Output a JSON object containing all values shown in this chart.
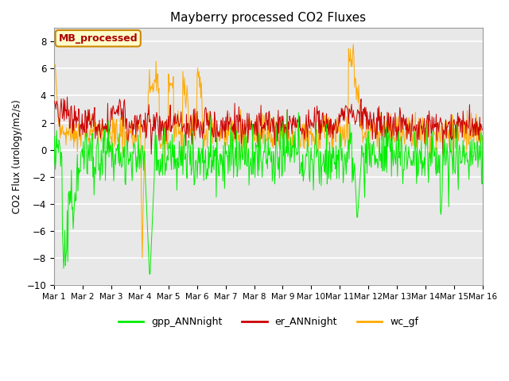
{
  "title": "Mayberry processed CO2 Fluxes",
  "ylabel": "CO2 Flux (urology/m2/s)",
  "ylim": [
    -10,
    9
  ],
  "yticks": [
    -10,
    -8,
    -6,
    -4,
    -2,
    0,
    2,
    4,
    6,
    8
  ],
  "xlim": [
    0,
    15
  ],
  "xtick_labels": [
    "Mar 1",
    "Mar 2",
    "Mar 3",
    "Mar 4",
    "Mar 5",
    "Mar 6",
    "Mar 7",
    "Mar 8",
    "Mar 9",
    "Mar 10",
    "Mar 11",
    "Mar 12",
    "Mar 13",
    "Mar 14",
    "Mar 15",
    "Mar 16"
  ],
  "xtick_positions": [
    0,
    1,
    2,
    3,
    4,
    5,
    6,
    7,
    8,
    9,
    10,
    11,
    12,
    13,
    14,
    15
  ],
  "colors": {
    "gpp": "#00ee00",
    "er": "#cc0000",
    "wc": "#ffaa00"
  },
  "legend_label": "MB_processed",
  "legend_bg": "#ffffcc",
  "legend_border": "#cc8800",
  "legend_text_color": "#aa0000",
  "bg_color": "#e8e8e8",
  "plot_bg": "#f0f0f0",
  "series_labels": [
    "gpp_ANNnight",
    "er_ANNnight",
    "wc_gf"
  ],
  "n_points": 720,
  "seed": 12345
}
